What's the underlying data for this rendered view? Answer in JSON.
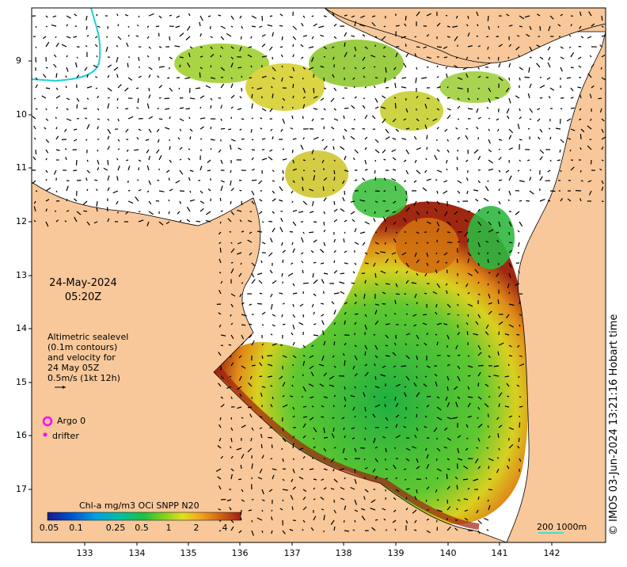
{
  "map": {
    "date_line1": "24-May-2024",
    "date_line2": "05:20Z",
    "altimetry_lines": [
      "Altimetric sealevel",
      "(0.1m contours)",
      "and velocity for",
      "24 May 05Z",
      "0.5m/s (1kt 12h)"
    ],
    "legend_argo": "Argo 0",
    "legend_drifter": "drifter",
    "colorbar_title": "Chl-a mg/m3 OCi SNPP N20",
    "colorbar_ticks": [
      "0.05",
      "0.1",
      "0.25",
      "0.5",
      "1",
      "2",
      "4"
    ],
    "scale_label": "200  1000m",
    "credit": "© IMOS 03-Jun-2024 13:21:16 Hobart time",
    "lat_labels": [
      "9",
      "10",
      "11",
      "12",
      "13",
      "14",
      "15",
      "16",
      "17"
    ],
    "lon_labels": [
      "133",
      "134",
      "135",
      "136",
      "137",
      "138",
      "139",
      "140",
      "141",
      "142"
    ],
    "colors": {
      "land": "#F8C89A",
      "argo_marker": "#FF00FF",
      "drifter_marker": "#FF00FF",
      "scale_line": "#40E0D0",
      "colormap": [
        "#1a1a8c",
        "#0050d0",
        "#00a0e0",
        "#00c0a0",
        "#20c040",
        "#80d020",
        "#e0e020",
        "#f0a020",
        "#d06010",
        "#a02010"
      ]
    }
  }
}
